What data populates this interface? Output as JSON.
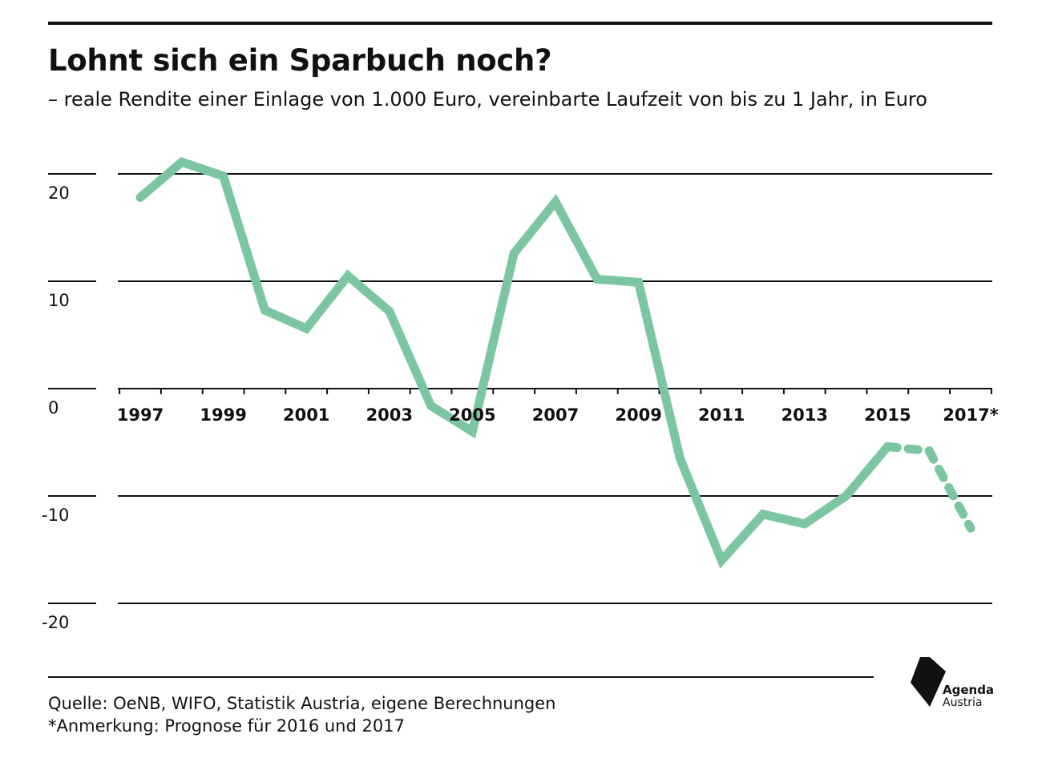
{
  "header": {
    "title": "Lohnt sich ein Sparbuch noch?",
    "subtitle": "– reale Rendite einer Einlage von 1.000 Euro, vereinbarte Laufzeit von bis zu 1 Jahr, in Euro"
  },
  "footer": {
    "source": "Quelle:  OeNB, WIFO, Statistik Austria, eigene Berechnungen",
    "note": "*Anmerkung: Prognose für 2016 und 2017"
  },
  "logo": {
    "icon": "agenda-austria-logo-icon",
    "line1": "Agenda",
    "line2": "Austria"
  },
  "colors": {
    "line": "#7BC6A0",
    "axis": "#111111"
  },
  "chart_data": {
    "type": "line",
    "title": "Lohnt sich ein Sparbuch noch?",
    "subtitle": "– reale Rendite einer Einlage von 1.000 Euro, vereinbarte Laufzeit von bis zu 1 Jahr, in Euro",
    "xlabel": "",
    "ylabel": "",
    "x": [
      1997,
      1998,
      1999,
      2000,
      2001,
      2002,
      2003,
      2004,
      2005,
      2006,
      2007,
      2008,
      2009,
      2010,
      2011,
      2012,
      2013,
      2014,
      2015,
      2016,
      2017
    ],
    "x_tick_labels": [
      "1997",
      "1999",
      "2001",
      "2003",
      "2005",
      "2007",
      "2009",
      "2011",
      "2013",
      "2015",
      "2017*"
    ],
    "x_tick_years": [
      1997,
      1999,
      2001,
      2003,
      2005,
      2007,
      2009,
      2011,
      2013,
      2015,
      2017
    ],
    "ylim": [
      -20,
      20
    ],
    "y_ticks": [
      20,
      10,
      0,
      -10,
      -20
    ],
    "grid": true,
    "series": [
      {
        "values": [
          17.8,
          21.1,
          19.8,
          7.3,
          5.6,
          10.5,
          7.2,
          -1.6,
          -4.0,
          12.6,
          17.4,
          10.2,
          9.9,
          -6.5,
          -16.0,
          -11.7,
          -12.6,
          -10.0,
          -5.4,
          -5.8,
          -13.0
        ],
        "actual_until": 2015,
        "forecast_from": 2015
      }
    ]
  }
}
